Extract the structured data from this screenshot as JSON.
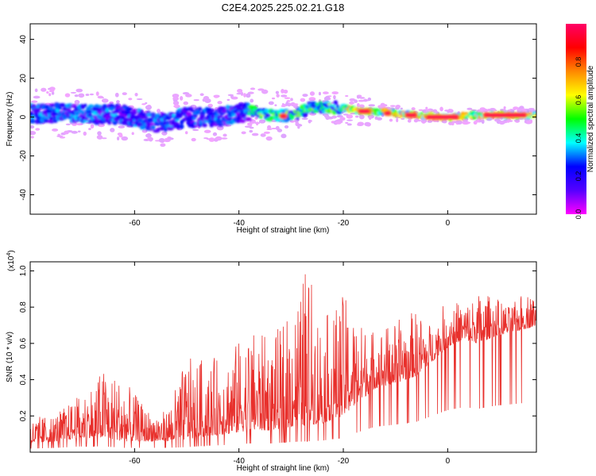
{
  "page_title": "C2E4.2025.225.02.21.G18",
  "chart_data": [
    {
      "type": "heatmap",
      "title": "C2E4.2025.225.02.21.G18",
      "xlabel": "Height of straight line (km)",
      "ylabel": "Frequency (Hz)",
      "xlim": [
        -80,
        17
      ],
      "ylim": [
        -50,
        48
      ],
      "xticks": [
        -60,
        -40,
        -20,
        0
      ],
      "yticks": [
        40,
        20,
        0,
        -20,
        -40
      ],
      "grid": false,
      "ridge": {
        "description_points": [
          {
            "x": -78,
            "y": 2
          },
          {
            "x": -70,
            "y": 2
          },
          {
            "x": -62,
            "y": 1
          },
          {
            "x": -56,
            "y": -3
          },
          {
            "x": -50,
            "y": 0
          },
          {
            "x": -44,
            "y": 0
          },
          {
            "x": -38,
            "y": 3
          },
          {
            "x": -34,
            "y": 1
          },
          {
            "x": -30,
            "y": 1
          },
          {
            "x": -26,
            "y": 5
          },
          {
            "x": -21,
            "y": 5
          },
          {
            "x": -16,
            "y": 3
          },
          {
            "x": -10,
            "y": 2
          },
          {
            "x": -5,
            "y": 1
          },
          {
            "x": 0,
            "y": 0
          },
          {
            "x": 5,
            "y": 1
          },
          {
            "x": 10,
            "y": 1
          },
          {
            "x": 16,
            "y": 1
          }
        ],
        "peak_segments": [
          {
            "x0": -32,
            "x1": -31,
            "y": 0.5
          },
          {
            "x0": -17,
            "x1": -15,
            "y": 3
          },
          {
            "x0": -12,
            "x1": -11,
            "y": 2
          },
          {
            "x0": -8,
            "x1": -6,
            "y": 1
          },
          {
            "x0": -4,
            "x1": 2,
            "y": 0
          },
          {
            "x0": 7,
            "x1": 15,
            "y": 1
          }
        ]
      }
    },
    {
      "type": "line",
      "xlabel": "Height of straight line (km)",
      "ylabel": "SNR (10 * v/v)",
      "y_multiplier": "(x10",
      "y_multiplier_exp": "4",
      "y_multiplier_close": ")",
      "xlim": [
        -80,
        17
      ],
      "ylim": [
        0,
        1.05
      ],
      "xticks": [
        -60,
        -40,
        -20,
        0
      ],
      "yticks": [
        0.2,
        0.4,
        0.6,
        0.8,
        1.0
      ],
      "yticklabels": [
        "0.2",
        "0.4",
        "0.6",
        "0.8",
        "1.0"
      ],
      "series_color": "#e8302c",
      "envelope": {
        "x": [
          -80,
          -75,
          -70,
          -66,
          -62,
          -58,
          -54,
          -50,
          -46,
          -42,
          -38,
          -34,
          -30,
          -27,
          -24,
          -20,
          -17,
          -14,
          -10,
          -6,
          -3,
          0,
          3,
          6,
          9,
          12,
          15,
          17
        ],
        "base": [
          0.05,
          0.06,
          0.08,
          0.08,
          0.06,
          0.06,
          0.06,
          0.07,
          0.09,
          0.1,
          0.12,
          0.12,
          0.14,
          0.15,
          0.16,
          0.2,
          0.28,
          0.35,
          0.38,
          0.42,
          0.5,
          0.58,
          0.62,
          0.6,
          0.64,
          0.66,
          0.68,
          0.7
        ],
        "peak": [
          0.18,
          0.22,
          0.32,
          0.46,
          0.4,
          0.24,
          0.22,
          0.52,
          0.5,
          0.56,
          0.68,
          0.62,
          0.78,
          1.05,
          0.72,
          0.86,
          0.72,
          0.68,
          0.72,
          0.78,
          0.7,
          0.85,
          0.82,
          0.88,
          0.86,
          0.8,
          0.9,
          0.84
        ]
      }
    }
  ],
  "colorbar": {
    "label": "Normalized spectral amplitude",
    "range": [
      0,
      1
    ],
    "ticks": [
      0.0,
      0.2,
      0.4,
      0.6,
      0.8
    ],
    "ticklabels": [
      "0.0",
      "0.2",
      "0.4",
      "0.6",
      "0.8"
    ],
    "stops": [
      "#ff00ff",
      "#5500ff",
      "#0000ff",
      "#00ffff",
      "#00ff00",
      "#ffff00",
      "#ff8800",
      "#ff0000",
      "#ff0066"
    ]
  }
}
